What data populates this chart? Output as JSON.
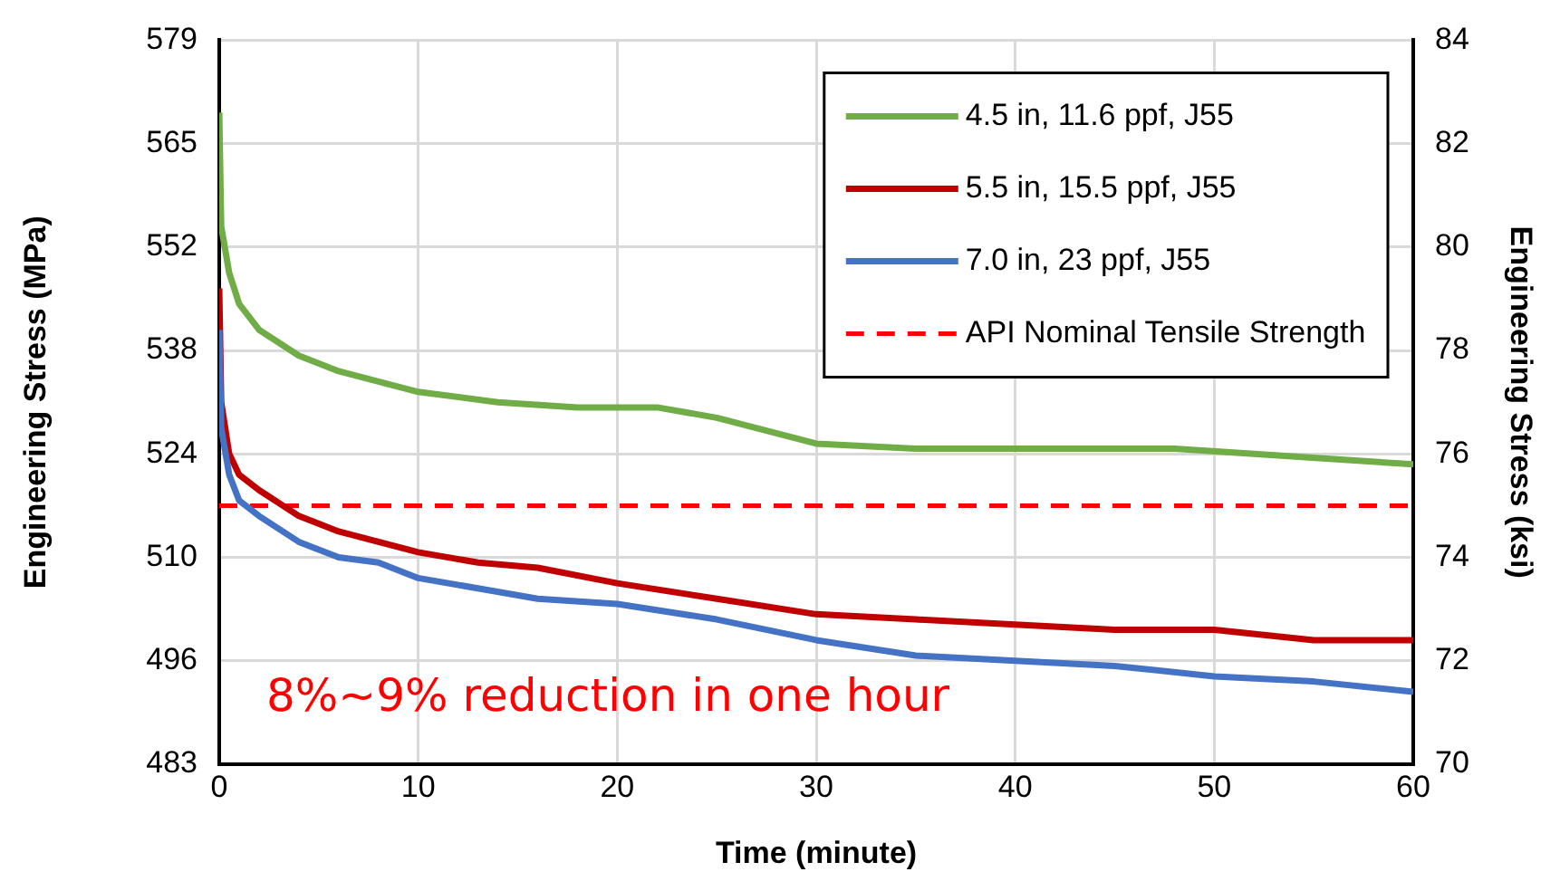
{
  "chart_data": {
    "type": "line",
    "xlabel": "Time (minute)",
    "ylabel": "Engineering Stress (MPa)",
    "y2label": "Engineering Stress (ksi)",
    "xlim": [
      0,
      60
    ],
    "xticks": [
      0,
      10,
      20,
      30,
      40,
      50,
      60
    ],
    "ylim": [
      482.6,
      579.2
    ],
    "yticks": [
      {
        "value": 482.6,
        "label": "483"
      },
      {
        "value": 496.4,
        "label": "496"
      },
      {
        "value": 510.2,
        "label": "510"
      },
      {
        "value": 524.0,
        "label": "524"
      },
      {
        "value": 537.8,
        "label": "538"
      },
      {
        "value": 551.6,
        "label": "552"
      },
      {
        "value": 565.4,
        "label": "565"
      },
      {
        "value": 579.2,
        "label": "579"
      }
    ],
    "y2lim": [
      70,
      84
    ],
    "y2ticks": [
      70,
      72,
      74,
      76,
      78,
      80,
      82,
      84
    ],
    "grid": true,
    "legend": "top right",
    "marker": "none",
    "line_style": "solid",
    "series": [
      {
        "name": "4.5 in, 11.6 ppf, J55",
        "color": "#70ad47",
        "axis": "y2",
        "x": [
          0,
          0.1,
          0.5,
          1,
          2,
          4,
          6,
          10,
          14,
          18,
          22,
          25,
          30,
          35,
          40,
          44,
          48,
          52,
          56,
          60
        ],
        "values": [
          82.6,
          80.4,
          79.5,
          78.9,
          78.4,
          77.9,
          77.6,
          77.2,
          77.0,
          76.9,
          76.9,
          76.7,
          76.2,
          76.1,
          76.1,
          76.1,
          76.1,
          76.0,
          75.9,
          75.8
        ]
      },
      {
        "name": "5.5 in, 15.5 ppf, J55",
        "color": "#c00000",
        "axis": "y2",
        "x": [
          0,
          0.1,
          0.5,
          1,
          2,
          4,
          6,
          8,
          10,
          13,
          16,
          20,
          25,
          30,
          35,
          40,
          45,
          50,
          55,
          60
        ],
        "values": [
          79.2,
          77.0,
          76.0,
          75.6,
          75.3,
          74.8,
          74.5,
          74.3,
          74.1,
          73.9,
          73.8,
          73.5,
          73.2,
          72.9,
          72.8,
          72.7,
          72.6,
          72.6,
          72.4,
          72.4
        ]
      },
      {
        "name": "7.0 in, 23 ppf, J55",
        "color": "#4472c4",
        "axis": "y2",
        "x": [
          0,
          0.1,
          0.5,
          1,
          2,
          4,
          6,
          8,
          10,
          13,
          16,
          20,
          25,
          30,
          35,
          40,
          45,
          50,
          55,
          60
        ],
        "values": [
          78.4,
          76.5,
          75.6,
          75.1,
          74.8,
          74.3,
          74.0,
          73.9,
          73.6,
          73.4,
          73.2,
          73.1,
          72.8,
          72.4,
          72.1,
          72.0,
          71.9,
          71.7,
          71.6,
          71.4
        ]
      }
    ],
    "ref_lines": [
      {
        "axis": "y2",
        "value": 75,
        "label": "API Nominal Tensile Strength",
        "color": "#ff0000",
        "line_style": "dashed"
      }
    ],
    "annotations": [
      "8%~9% reduction in one hour"
    ]
  }
}
